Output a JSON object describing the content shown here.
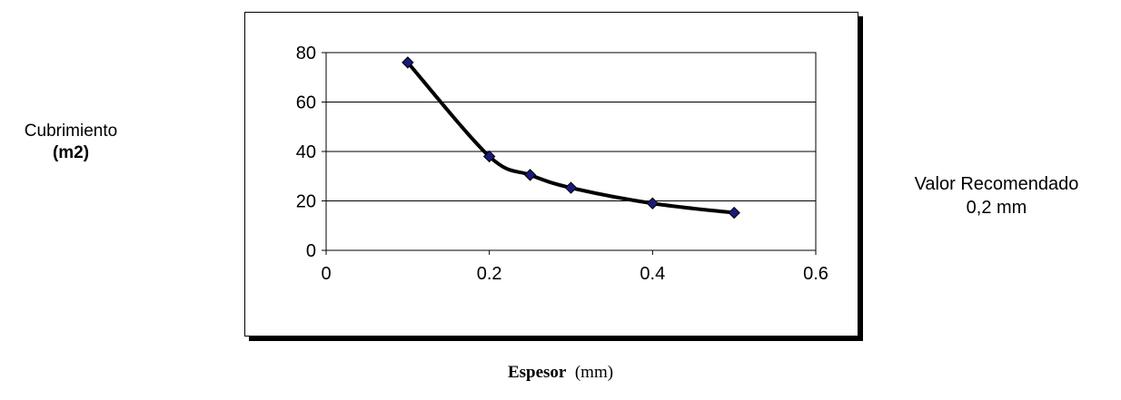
{
  "chart_data": {
    "type": "scatter",
    "x": [
      0.1,
      0.2,
      0.25,
      0.3,
      0.4,
      0.5
    ],
    "y": [
      76,
      38,
      30.5,
      25.3,
      19,
      15.2
    ],
    "trendline": "smooth",
    "marker": "diamond",
    "xlim": [
      0,
      0.6
    ],
    "ylim": [
      0,
      80
    ],
    "xticks": [
      "0",
      "0.2",
      "0.4",
      "0.6"
    ],
    "yticks": [
      "0",
      "20",
      "40",
      "60",
      "80"
    ],
    "grid": "horizontal",
    "legend": "none",
    "ylabel": {
      "text": "Cubrimiento",
      "unit": "(m2)"
    },
    "xlabel": {
      "text": "Espesor",
      "unit": "(mm)"
    },
    "annotation": {
      "line1": "Valor Recomendado",
      "line2": "0,2 mm"
    }
  },
  "colors": {
    "marker_fill": "#1a1a7a",
    "curve": "#000000",
    "grid": "#000000",
    "background": "#ffffff"
  }
}
